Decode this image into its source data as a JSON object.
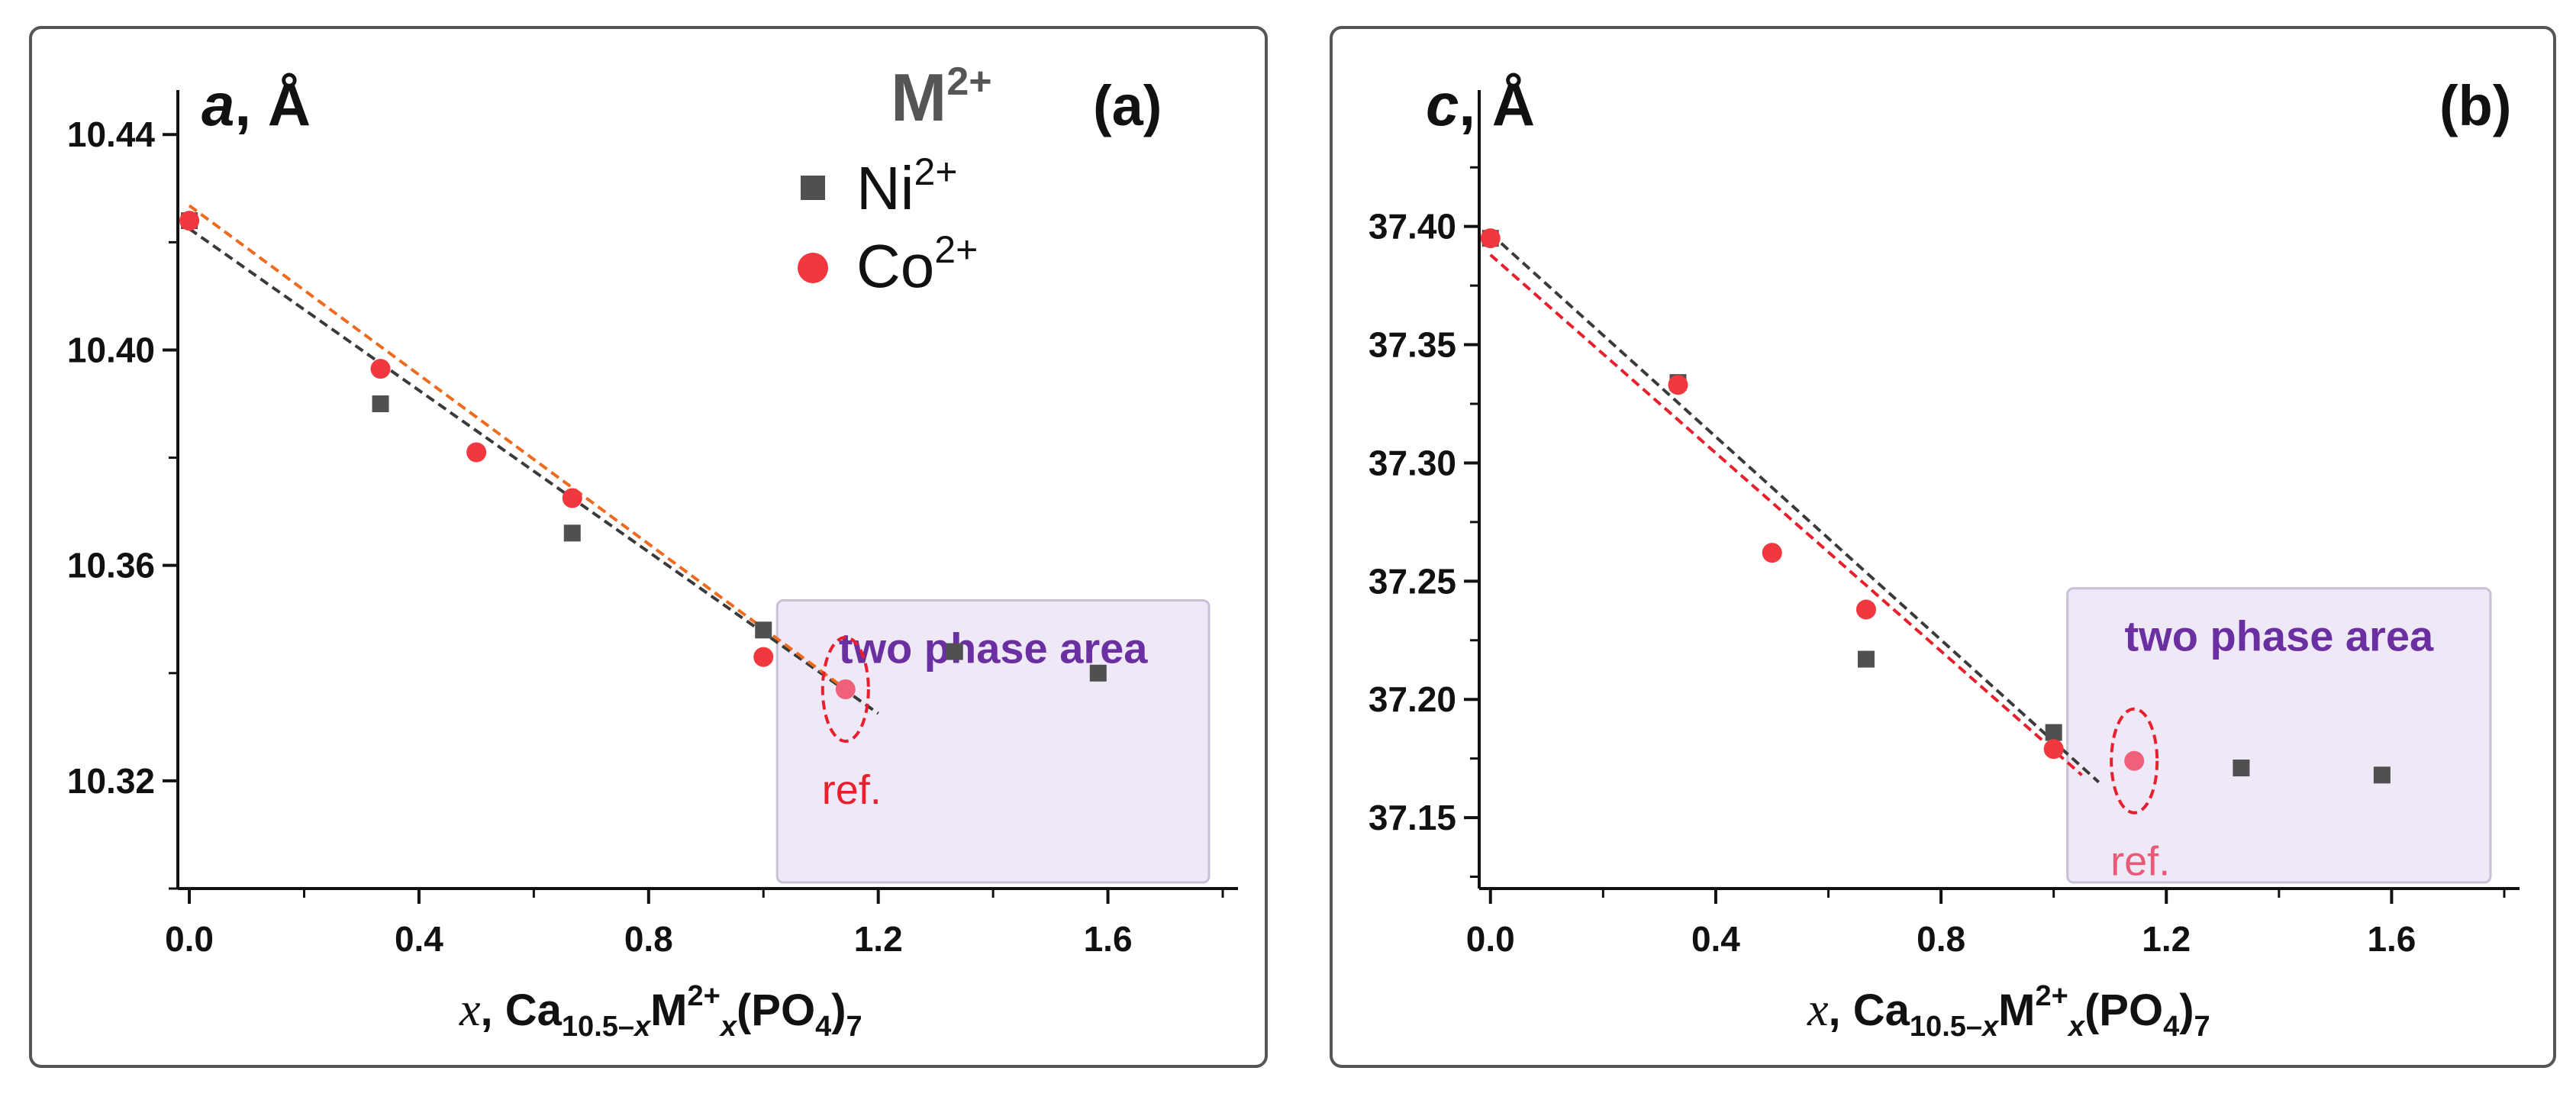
{
  "chart_data": [
    {
      "type": "scatter",
      "panel_tag": "(a)",
      "ylabel_symbol": "a",
      "ylabel_unit": ", Å",
      "xlabel": {
        "var": "x",
        "comma": ", ",
        "ca": "Ca",
        "ca_sub": "10.5–",
        "ca_sub_x": "x",
        "m": "M",
        "m_sup": "2+",
        "m_sub": "x",
        "po": "(PO",
        "po_sub": "4",
        "po_close": ")",
        "po_close_sub": "7"
      },
      "xlim": [
        -0.02,
        1.8
      ],
      "ylim": [
        10.3,
        10.444
      ],
      "xticks": [
        0.0,
        0.4,
        0.8,
        1.2,
        1.6
      ],
      "xtick_labels": [
        "0.0",
        "0.4",
        "0.8",
        "1.2",
        "1.6"
      ],
      "yticks": [
        10.32,
        10.36,
        10.4,
        10.44
      ],
      "ytick_labels": [
        "10.32",
        "10.36",
        "10.40",
        "10.44"
      ],
      "legend": {
        "title": "M",
        "title_sup": "2+",
        "placement": "top-center"
      },
      "series": [
        {
          "name": "Ni",
          "name_sup": "2+",
          "marker": "square",
          "color": "#505050",
          "x": [
            0.0,
            0.333,
            0.667,
            1.0,
            1.333,
            1.583
          ],
          "y": [
            10.424,
            10.39,
            10.366,
            10.348,
            10.344,
            10.34
          ]
        },
        {
          "name": "Co",
          "name_sup": "2+",
          "marker": "circle",
          "color": "#f0383e",
          "x": [
            0.0,
            0.333,
            0.5,
            0.667,
            1.0
          ],
          "y": [
            10.424,
            10.3965,
            10.381,
            10.3725,
            10.343
          ]
        }
      ],
      "reference_point": {
        "label": "ref.",
        "x": 1.143,
        "y": 10.337,
        "color": "#f0607a",
        "label_color": "#e81f2c"
      },
      "fit_lines": [
        {
          "series": "Ni",
          "color": "#3a3a3a",
          "x": [
            0.0,
            1.2
          ],
          "y": [
            10.4225,
            10.3325
          ]
        },
        {
          "series": "Co",
          "color": "#ee6a1e",
          "x": [
            0.0,
            1.15
          ],
          "y": [
            10.4268,
            10.3365
          ]
        }
      ],
      "region": {
        "label": "two phase area",
        "x_start": 1.0,
        "x_end": 1.8,
        "y_start": 10.3,
        "y_end": 10.3535,
        "fill": "#efe8f7",
        "stroke": "#c9bfd6"
      }
    },
    {
      "type": "scatter",
      "panel_tag": "(b)",
      "ylabel_symbol": "c",
      "ylabel_unit": ", Å",
      "xlabel": {
        "var": "x",
        "comma": ", ",
        "ca": "Ca",
        "ca_sub": "10.5–",
        "ca_sub_x": "x",
        "m": "M",
        "m_sup": "2+",
        "m_sub": "x",
        "po": "(PO",
        "po_sub": "4",
        "po_close": ")",
        "po_close_sub": "7"
      },
      "xlim": [
        -0.02,
        1.8
      ],
      "ylim": [
        37.12,
        37.448
      ],
      "xticks": [
        0.0,
        0.4,
        0.8,
        1.2,
        1.6
      ],
      "xtick_labels": [
        "0.0",
        "0.4",
        "0.8",
        "1.2",
        "1.6"
      ],
      "yticks": [
        37.15,
        37.2,
        37.25,
        37.3,
        37.35,
        37.4
      ],
      "ytick_labels": [
        "37.15",
        "37.20",
        "37.25",
        "37.30",
        "37.35",
        "37.40"
      ],
      "series": [
        {
          "name": "Ni",
          "name_sup": "2+",
          "marker": "square",
          "color": "#505050",
          "x": [
            0.0,
            0.333,
            0.667,
            1.0,
            1.333,
            1.583
          ],
          "y": [
            37.395,
            37.334,
            37.217,
            37.186,
            37.171,
            37.168
          ]
        },
        {
          "name": "Co",
          "name_sup": "2+",
          "marker": "circle",
          "color": "#f0383e",
          "x": [
            0.0,
            0.333,
            0.5,
            0.667,
            1.0
          ],
          "y": [
            37.395,
            37.333,
            37.262,
            37.238,
            37.179
          ]
        }
      ],
      "reference_point": {
        "label": "ref.",
        "x": 1.143,
        "y": 37.174,
        "color": "#f0607a",
        "label_color": "#e85a78"
      },
      "fit_lines": [
        {
          "series": "Ni",
          "color": "#3a3a3a",
          "x": [
            0.0,
            1.08
          ],
          "y": [
            37.397,
            37.165
          ]
        },
        {
          "series": "Co",
          "color": "#e81f2c",
          "x": [
            0.0,
            1.05
          ],
          "y": [
            37.388,
            37.168
          ]
        }
      ],
      "region": {
        "label": "two phase area",
        "x_start": 1.0,
        "x_end": 1.8,
        "y_start": 37.12,
        "y_end": 37.247,
        "fill": "#efe8f7",
        "stroke": "#c9bfd6"
      }
    }
  ]
}
